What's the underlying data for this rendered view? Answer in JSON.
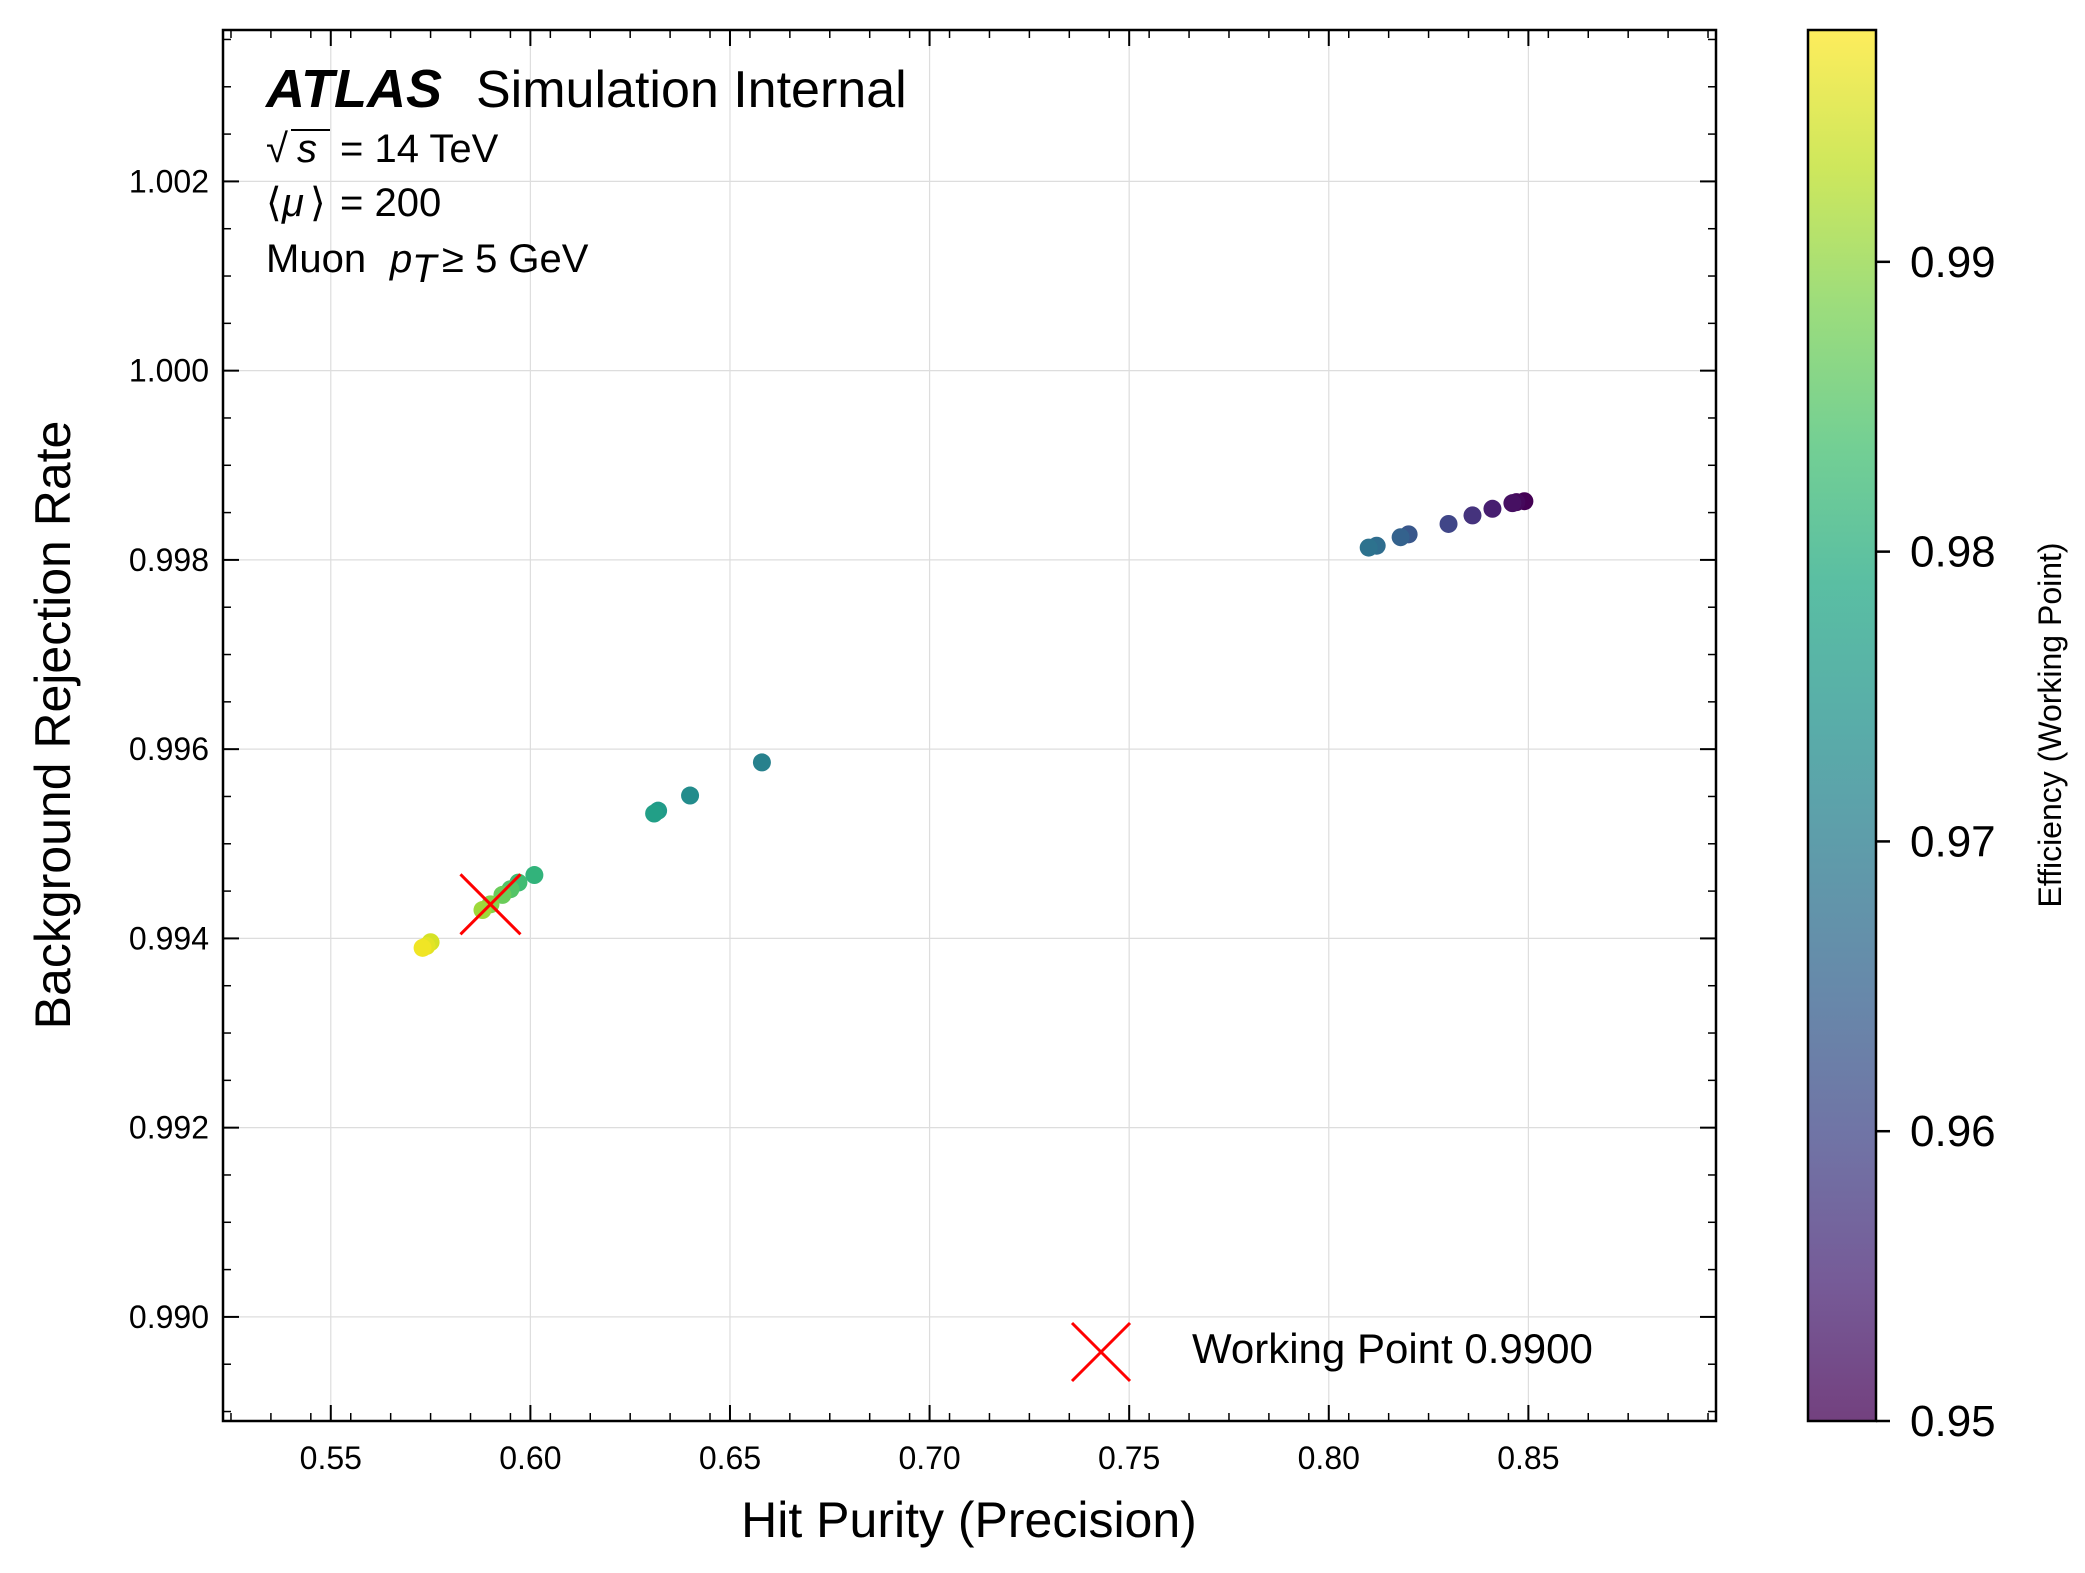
{
  "chart_data": {
    "type": "scatter",
    "xlabel": "Hit Purity (Precision)",
    "ylabel": "Background Rejection Rate",
    "xlim": [
      0.523,
      0.897
    ],
    "ylim": [
      0.9889,
      1.0036
    ],
    "xticks": [
      "0.55",
      "0.60",
      "0.65",
      "0.70",
      "0.75",
      "0.80",
      "0.85"
    ],
    "yticks": [
      "0.990",
      "0.992",
      "0.994",
      "0.996",
      "0.998",
      "1.000",
      "1.002"
    ],
    "grid": true,
    "colorbar": {
      "label": "Efficiency (Working Point)",
      "range": [
        0.95,
        0.998
      ],
      "ticks": [
        "0.95",
        "0.96",
        "0.97",
        "0.98",
        "0.99"
      ],
      "colormap": "viridis"
    },
    "annotations": {
      "experiment": "ATLAS",
      "status": "Simulation Internal",
      "energy_lhs": "s",
      "energy_rhs": "= 14 TeV",
      "pileup_symbol": "μ",
      "pileup_rhs": "= 200",
      "cut_prefix": "Muon",
      "cut_var": "p",
      "cut_sub": "T",
      "cut_rhs": "≥ 5 GeV"
    },
    "legend": {
      "label": "Working Point 0.9900",
      "placement": "lower-right",
      "marker": "x",
      "color": "#ff0000"
    },
    "working_point": {
      "x": 0.59,
      "y": 0.99436,
      "efficiency": 0.99,
      "color": "#ff0000"
    },
    "points": [
      {
        "x": 0.849,
        "y": 0.99862,
        "eff": 0.95
      },
      {
        "x": 0.847,
        "y": 0.99861,
        "eff": 0.951
      },
      {
        "x": 0.846,
        "y": 0.9986,
        "eff": 0.952
      },
      {
        "x": 0.841,
        "y": 0.99854,
        "eff": 0.954
      },
      {
        "x": 0.836,
        "y": 0.99847,
        "eff": 0.957
      },
      {
        "x": 0.83,
        "y": 0.99838,
        "eff": 0.96
      },
      {
        "x": 0.82,
        "y": 0.99827,
        "eff": 0.963
      },
      {
        "x": 0.818,
        "y": 0.99824,
        "eff": 0.965
      },
      {
        "x": 0.812,
        "y": 0.99815,
        "eff": 0.967
      },
      {
        "x": 0.81,
        "y": 0.99813,
        "eff": 0.968
      },
      {
        "x": 0.658,
        "y": 0.99586,
        "eff": 0.971
      },
      {
        "x": 0.64,
        "y": 0.99551,
        "eff": 0.973
      },
      {
        "x": 0.632,
        "y": 0.99535,
        "eff": 0.976
      },
      {
        "x": 0.631,
        "y": 0.99532,
        "eff": 0.977
      },
      {
        "x": 0.601,
        "y": 0.99467,
        "eff": 0.981
      },
      {
        "x": 0.597,
        "y": 0.99459,
        "eff": 0.983
      },
      {
        "x": 0.595,
        "y": 0.99452,
        "eff": 0.985
      },
      {
        "x": 0.593,
        "y": 0.99446,
        "eff": 0.987
      },
      {
        "x": 0.59,
        "y": 0.99436,
        "eff": 0.989
      },
      {
        "x": 0.588,
        "y": 0.9943,
        "eff": 0.991
      },
      {
        "x": 0.575,
        "y": 0.99396,
        "eff": 0.995
      },
      {
        "x": 0.574,
        "y": 0.99392,
        "eff": 0.996
      },
      {
        "x": 0.573,
        "y": 0.9939,
        "eff": 0.997
      }
    ]
  }
}
